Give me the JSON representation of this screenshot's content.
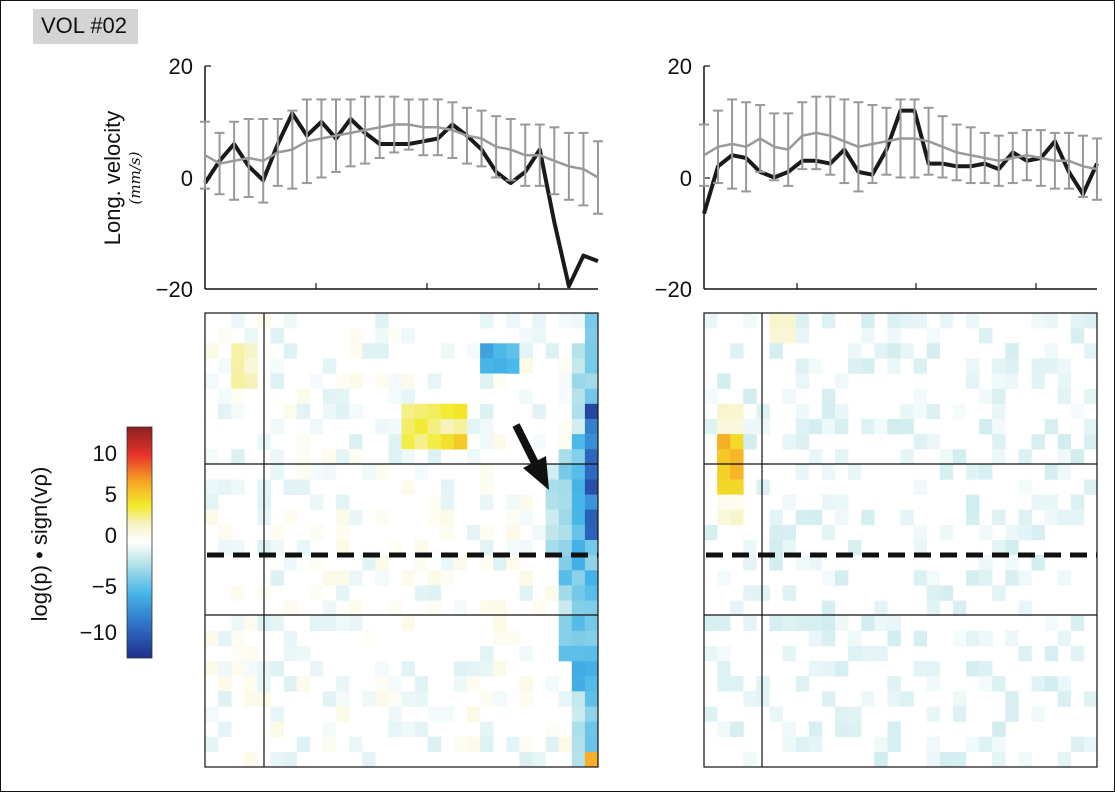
{
  "panel_label": "VOL #02",
  "chart_data": [
    {
      "type": "line",
      "panel": "top-left",
      "ylabel": "Long. velocity",
      "yunit": "(mm/s)",
      "ylim": [
        -20,
        20
      ],
      "yticks": [
        "20",
        "0",
        "−20"
      ],
      "series": [
        {
          "color": "#1a1a1a",
          "values": [
            -1,
            3,
            6,
            2,
            -0.5,
            6,
            11.5,
            7.5,
            10,
            7,
            10.5,
            8,
            6,
            6,
            6,
            6.5,
            7,
            9.5,
            7.5,
            5,
            1,
            -1,
            1,
            5,
            -8,
            -19.5,
            -14,
            -15
          ]
        },
        {
          "color": "#999999",
          "values": [
            4,
            2.5,
            3,
            3.5,
            3,
            4.5,
            5,
            6.5,
            7,
            7.5,
            8,
            8.5,
            9,
            9.5,
            9.5,
            9,
            9,
            8.5,
            7.5,
            7,
            5.5,
            5,
            4,
            4,
            3,
            2,
            1.5,
            0
          ],
          "error": [
            6,
            5.5,
            7,
            7,
            7.5,
            6,
            7,
            7.5,
            7,
            6.5,
            6,
            6,
            5.5,
            5,
            4.5,
            5,
            5,
            5,
            5,
            5,
            5.5,
            5.5,
            5.5,
            5.5,
            6,
            6,
            6.5,
            6.5
          ]
        }
      ]
    },
    {
      "type": "line",
      "panel": "top-right",
      "ylim": [
        -20,
        20
      ],
      "yticks": [
        "20",
        "0",
        "−20"
      ],
      "series": [
        {
          "color": "#1a1a1a",
          "values": [
            -6.5,
            2,
            4,
            3.5,
            1,
            0,
            1,
            3,
            3,
            2.5,
            5,
            1,
            0.5,
            5,
            12,
            12,
            2.5,
            2.5,
            2,
            2,
            2.5,
            1.5,
            4.5,
            3,
            3.5,
            6.5,
            1,
            -3,
            2.5
          ]
        },
        {
          "color": "#999999",
          "values": [
            4,
            5.5,
            6,
            5.5,
            7,
            5.5,
            5,
            7.5,
            8,
            7.5,
            6.5,
            5.5,
            6,
            6.5,
            7,
            7,
            6.5,
            5.5,
            4.5,
            4,
            3.5,
            3,
            3.5,
            4,
            3.5,
            3,
            3,
            2,
            1.5
          ],
          "error": [
            5.5,
            6.5,
            8,
            8,
            6,
            6,
            6.5,
            6,
            6.5,
            7,
            7.5,
            8,
            7,
            6,
            7,
            7,
            6,
            5.5,
            5,
            5,
            4.5,
            4.5,
            4.5,
            4.5,
            5,
            5,
            5,
            5.5,
            5.5
          ]
        }
      ]
    },
    {
      "type": "heatmap",
      "panel": "bottom-left",
      "colorbar_label": "log(p) • sign(vρ)",
      "colorbar_ticks": [
        "10",
        "5",
        "0",
        "−5",
        "−10"
      ],
      "clim": [
        -14,
        14
      ]
    },
    {
      "type": "heatmap",
      "panel": "bottom-right",
      "clim": [
        -14,
        14
      ]
    }
  ]
}
